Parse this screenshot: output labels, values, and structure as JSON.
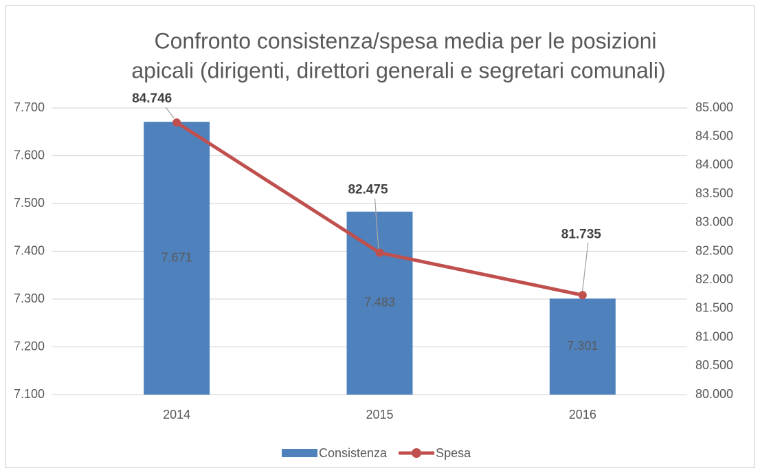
{
  "chart_data": {
    "type": "bar-line",
    "title": [
      "Confronto consistenza/spesa media per le posizioni",
      "apicali (dirigenti, direttori generali e segretari comunali)"
    ],
    "categories": [
      "2014",
      "2015",
      "2016"
    ],
    "series": [
      {
        "name": "Consistenza",
        "type": "bar",
        "color": "#4f81bd",
        "values": [
          7671,
          7483,
          7301
        ],
        "value_labels": [
          "7.671",
          "7.483",
          "7.301"
        ]
      },
      {
        "name": "Spesa",
        "type": "line",
        "axis": "y2",
        "color": "#c0504d",
        "values": [
          84746,
          82475,
          81735
        ],
        "value_labels": [
          "84.746",
          "82.475",
          "81.735"
        ]
      }
    ],
    "ylim": [
      7100,
      7700
    ],
    "yticks": [
      {
        "value": 7100,
        "label": "7.100"
      },
      {
        "value": 7200,
        "label": "7.200"
      },
      {
        "value": 7300,
        "label": "7.300"
      },
      {
        "value": 7400,
        "label": "7.400"
      },
      {
        "value": 7500,
        "label": "7.500"
      },
      {
        "value": 7600,
        "label": "7.600"
      },
      {
        "value": 7700,
        "label": "7.700"
      }
    ],
    "y2lim": [
      80000,
      85000
    ],
    "y2ticks": [
      {
        "value": 80000,
        "label": "80.000"
      },
      {
        "value": 80500,
        "label": "80.500"
      },
      {
        "value": 81000,
        "label": "81.000"
      },
      {
        "value": 81500,
        "label": "81.500"
      },
      {
        "value": 82000,
        "label": "82.000"
      },
      {
        "value": 82500,
        "label": "82.500"
      },
      {
        "value": 83000,
        "label": "83.000"
      },
      {
        "value": 83500,
        "label": "83.500"
      },
      {
        "value": 84000,
        "label": "84.000"
      },
      {
        "value": 84500,
        "label": "84.500"
      },
      {
        "value": 85000,
        "label": "85.000"
      }
    ],
    "grid": true,
    "legend": "bottom"
  }
}
